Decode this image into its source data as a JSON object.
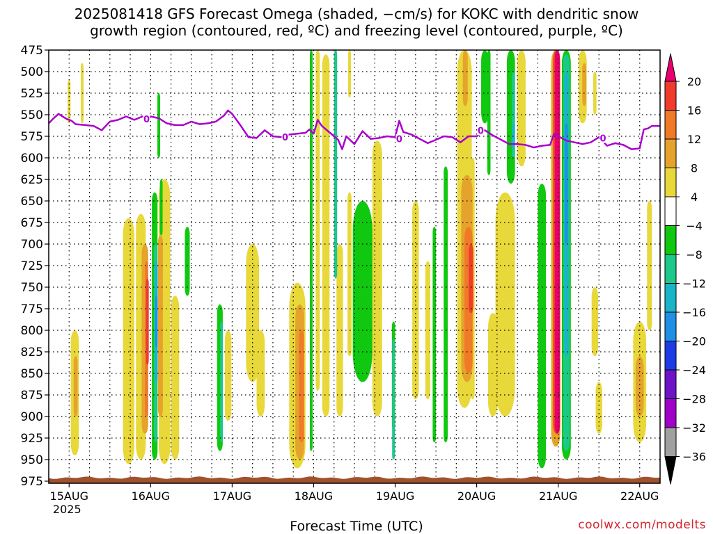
{
  "title": {
    "line1": "2025081418 GFS Forecast Omega (shaded, −cm/s) for KOKC with dendritic snow",
    "line2": "growth region (contoured, red, ºC) and freezing level (contoured, purple, ºC)"
  },
  "xlabel": "Forecast Time (UTC)",
  "credit": "coolwx.com/modelts",
  "chart_data": {
    "type": "heatmap",
    "y_axis": {
      "label": "",
      "ticks": [
        475,
        500,
        525,
        550,
        575,
        600,
        625,
        650,
        675,
        700,
        725,
        750,
        775,
        800,
        825,
        850,
        875,
        900,
        925,
        950,
        975
      ],
      "range": [
        475,
        975
      ],
      "inverted": true
    },
    "x_axis": {
      "range_days": [
        14.75,
        22.25
      ],
      "ticks": [
        {
          "day": 15,
          "label": "15AUG",
          "sublabel": "2025"
        },
        {
          "day": 16,
          "label": "16AUG",
          "sublabel": ""
        },
        {
          "day": 17,
          "label": "17AUG",
          "sublabel": ""
        },
        {
          "day": 18,
          "label": "18AUG",
          "sublabel": ""
        },
        {
          "day": 19,
          "label": "19AUG",
          "sublabel": ""
        },
        {
          "day": 20,
          "label": "20AUG",
          "sublabel": ""
        },
        {
          "day": 21,
          "label": "21AUG",
          "sublabel": ""
        },
        {
          "day": 22,
          "label": "22AUG",
          "sublabel": ""
        }
      ]
    },
    "grid": true,
    "colorbar": {
      "levels": [
        "20",
        "16",
        "12",
        "8",
        "4",
        "−4",
        "−8",
        "−12",
        "−16",
        "−20",
        "−24",
        "−28",
        "−32",
        "−36"
      ],
      "colors": [
        "#e8006e",
        "#f03b2c",
        "#f07a28",
        "#e6a32c",
        "#e8d83a",
        "#ffffff",
        "#10c810",
        "#1cc88a",
        "#19b4c8",
        "#1e90e6",
        "#1e3ce6",
        "#6e14c8",
        "#a000c8",
        "#a0a0a0",
        "#000000"
      ]
    },
    "freezing_level": {
      "color": "#aa00cc",
      "label": "0",
      "points": [
        [
          14.75,
          560
        ],
        [
          14.8,
          555
        ],
        [
          14.87,
          549
        ],
        [
          14.97,
          555
        ],
        [
          15.03,
          557
        ],
        [
          15.08,
          561
        ],
        [
          15.2,
          562
        ],
        [
          15.3,
          563
        ],
        [
          15.4,
          568
        ],
        [
          15.5,
          558
        ],
        [
          15.6,
          556
        ],
        [
          15.7,
          552
        ],
        [
          15.8,
          556
        ],
        [
          15.9,
          552
        ],
        [
          16.0,
          552
        ],
        [
          16.1,
          554
        ],
        [
          16.2,
          560
        ],
        [
          16.3,
          562
        ],
        [
          16.4,
          562
        ],
        [
          16.5,
          558
        ],
        [
          16.6,
          561
        ],
        [
          16.7,
          560
        ],
        [
          16.8,
          558
        ],
        [
          16.9,
          551
        ],
        [
          16.95,
          545
        ],
        [
          17.0,
          549
        ],
        [
          17.1,
          562
        ],
        [
          17.2,
          576
        ],
        [
          17.3,
          577
        ],
        [
          17.4,
          568
        ],
        [
          17.5,
          575
        ],
        [
          17.6,
          576
        ],
        [
          17.7,
          573
        ],
        [
          17.8,
          572
        ],
        [
          17.9,
          571
        ],
        [
          17.95,
          567
        ],
        [
          18.0,
          572
        ],
        [
          18.05,
          556
        ],
        [
          18.1,
          563
        ],
        [
          18.2,
          571
        ],
        [
          18.3,
          579
        ],
        [
          18.35,
          590
        ],
        [
          18.4,
          575
        ],
        [
          18.5,
          584
        ],
        [
          18.6,
          569
        ],
        [
          18.7,
          578
        ],
        [
          18.8,
          577
        ],
        [
          18.9,
          575
        ],
        [
          19.0,
          576
        ],
        [
          19.05,
          557
        ],
        [
          19.1,
          570
        ],
        [
          19.2,
          573
        ],
        [
          19.3,
          578
        ],
        [
          19.4,
          583
        ],
        [
          19.5,
          579
        ],
        [
          19.6,
          575
        ],
        [
          19.7,
          576
        ],
        [
          19.8,
          582
        ],
        [
          19.9,
          575
        ],
        [
          20.0,
          575
        ],
        [
          20.1,
          568
        ],
        [
          20.2,
          574
        ],
        [
          20.3,
          579
        ],
        [
          20.4,
          584
        ],
        [
          20.5,
          584
        ],
        [
          20.6,
          585
        ],
        [
          20.7,
          588
        ],
        [
          20.8,
          586
        ],
        [
          20.9,
          585
        ],
        [
          20.95,
          572
        ],
        [
          21.0,
          575
        ],
        [
          21.1,
          580
        ],
        [
          21.2,
          582
        ],
        [
          21.3,
          584
        ],
        [
          21.4,
          582
        ],
        [
          21.5,
          576
        ],
        [
          21.6,
          586
        ],
        [
          21.7,
          583
        ],
        [
          21.8,
          585
        ],
        [
          21.9,
          590
        ],
        [
          22.0,
          589
        ],
        [
          22.05,
          567
        ],
        [
          22.1,
          566
        ],
        [
          22.15,
          563
        ],
        [
          22.25,
          563
        ]
      ],
      "label_positions": [
        [
          15.95,
          555
        ],
        [
          17.65,
          576
        ],
        [
          19.05,
          578
        ],
        [
          20.05,
          568
        ],
        [
          21.55,
          577
        ]
      ]
    },
    "ground": {
      "color": "#a0522d",
      "top_pressure": 971
    }
  }
}
